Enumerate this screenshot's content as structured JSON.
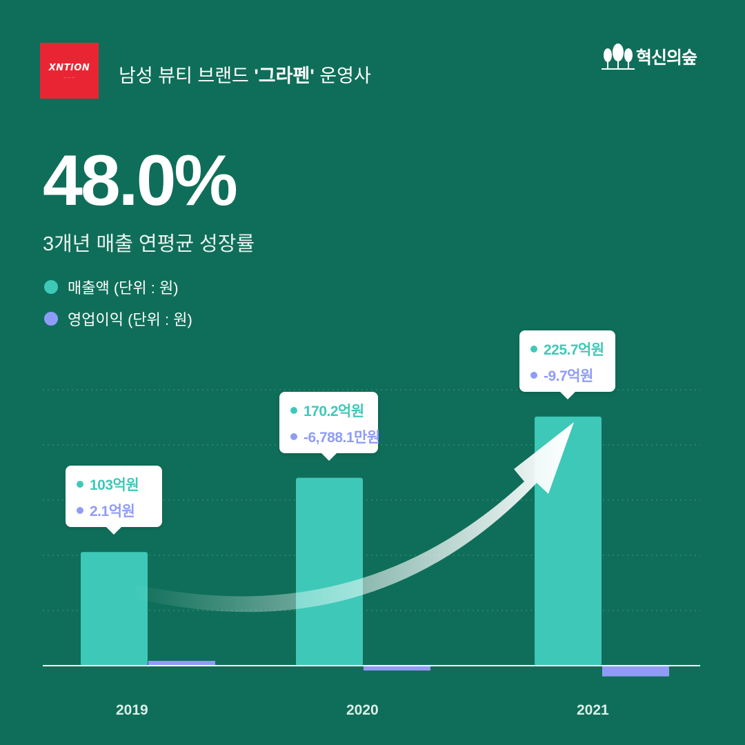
{
  "header": {
    "logo_text": "XNTION",
    "title_prefix": "남성 뷰티 브랜드 ",
    "title_bold": "'그라펜'",
    "title_suffix": " 운영사",
    "brand_name": "혁신의숲"
  },
  "headline": {
    "value": "48.0%",
    "caption": "3개년 매출 연평균 성장률"
  },
  "legend": [
    {
      "label": "매출액 (단위 : 원)",
      "color": "#3ec8b8"
    },
    {
      "label": "영업이익 (단위 : 원)",
      "color": "#8f9cf7"
    }
  ],
  "colors": {
    "background": "#0f6e59",
    "revenue": "#3ec8b8",
    "operating_profit": "#8f9cf7",
    "logo_bg": "#ea2533"
  },
  "chart_data": {
    "type": "bar",
    "categories": [
      "2019",
      "2020",
      "2021"
    ],
    "series": [
      {
        "name": "매출액 (단위 : 원)",
        "unit": "억원",
        "values": [
          103,
          170.2,
          225.7
        ]
      },
      {
        "name": "영업이익 (단위 : 원)",
        "unit": "억원",
        "values": [
          2.1,
          -0.67881,
          -9.7
        ]
      }
    ],
    "data_labels": [
      {
        "revenue": "103억원",
        "profit": "2.1억원"
      },
      {
        "revenue": "170.2억원",
        "profit": "-6,788.1만원"
      },
      {
        "revenue": "225.7억원",
        "profit": "-9.7억원"
      }
    ],
    "grid": true,
    "trend_arrow": true
  }
}
